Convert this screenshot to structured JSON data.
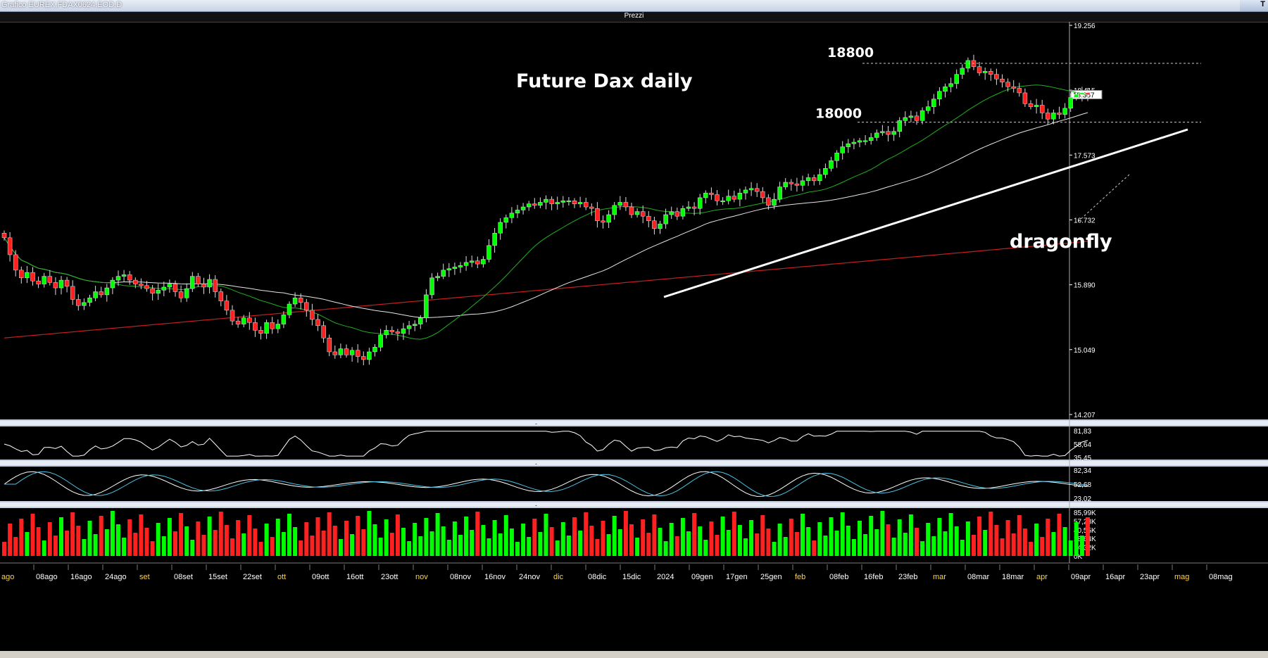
{
  "window": {
    "title": "Grafico EUREX.FDAX0624.EOD.D",
    "title_right": "T",
    "panel_title": "Prezzi"
  },
  "colors": {
    "up": "#00ff00",
    "down": "#ff2020",
    "ma_short": "#1fb01f",
    "ma_mid": "#e6e6e6",
    "ma_long": "#c81e1e",
    "osc1": "#ffffff",
    "osc2_a": "#ffffff",
    "osc2_b": "#4fc3e8",
    "axis_bg": "#000000",
    "date_yellow": "#ffd24a",
    "date_white": "#ffffff"
  },
  "chart_data": [
    {
      "type": "candlestick",
      "title": "Future Dax daily",
      "y_axis_ticks": [
        "19.256",
        "18.415",
        "17.573",
        "16.732",
        "15.890",
        "15.049",
        "14.207"
      ],
      "ylim": [
        14207,
        19256
      ],
      "last_price": "18.357",
      "x_labels": [
        {
          "t": "ago",
          "c": "yellow"
        },
        {
          "t": "08ago",
          "c": "white"
        },
        {
          "t": "16ago",
          "c": "white"
        },
        {
          "t": "24ago",
          "c": "white"
        },
        {
          "t": "set",
          "c": "yellow"
        },
        {
          "t": "08set",
          "c": "white"
        },
        {
          "t": "15set",
          "c": "white"
        },
        {
          "t": "22set",
          "c": "white"
        },
        {
          "t": "ott",
          "c": "yellow"
        },
        {
          "t": "09ott",
          "c": "white"
        },
        {
          "t": "16ott",
          "c": "white"
        },
        {
          "t": "23ott",
          "c": "white"
        },
        {
          "t": "nov",
          "c": "yellow"
        },
        {
          "t": "08nov",
          "c": "white"
        },
        {
          "t": "16nov",
          "c": "white"
        },
        {
          "t": "24nov",
          "c": "white"
        },
        {
          "t": "dic",
          "c": "yellow"
        },
        {
          "t": "08dic",
          "c": "white"
        },
        {
          "t": "15dic",
          "c": "white"
        },
        {
          "t": "2024",
          "c": "white"
        },
        {
          "t": "09gen",
          "c": "white"
        },
        {
          "t": "17gen",
          "c": "white"
        },
        {
          "t": "25gen",
          "c": "white"
        },
        {
          "t": "feb",
          "c": "yellow"
        },
        {
          "t": "08feb",
          "c": "white"
        },
        {
          "t": "16feb",
          "c": "white"
        },
        {
          "t": "23feb",
          "c": "white"
        },
        {
          "t": "mar",
          "c": "yellow"
        },
        {
          "t": "08mar",
          "c": "white"
        },
        {
          "t": "18mar",
          "c": "white"
        },
        {
          "t": "apr",
          "c": "yellow"
        },
        {
          "t": "09apr",
          "c": "white"
        },
        {
          "t": "16apr",
          "c": "white"
        },
        {
          "t": "23apr",
          "c": "white"
        },
        {
          "t": "mag",
          "c": "yellow"
        },
        {
          "t": "08mag",
          "c": "white"
        }
      ],
      "closes": [
        16500,
        16280,
        16080,
        15980,
        16050,
        15940,
        15900,
        16000,
        15920,
        15850,
        15950,
        15870,
        15700,
        15620,
        15660,
        15720,
        15800,
        15760,
        15850,
        15950,
        16000,
        16020,
        15950,
        15900,
        15880,
        15840,
        15780,
        15820,
        15860,
        15900,
        15800,
        15720,
        15840,
        16000,
        15900,
        15860,
        15960,
        15800,
        15680,
        15560,
        15420,
        15380,
        15460,
        15400,
        15300,
        15260,
        15400,
        15320,
        15380,
        15500,
        15640,
        15720,
        15660,
        15560,
        15440,
        15360,
        15200,
        15020,
        14980,
        15060,
        14980,
        15040,
        14960,
        14920,
        15020,
        15080,
        15240,
        15300,
        15280,
        15260,
        15320,
        15360,
        15380,
        15460,
        15760,
        15980,
        16000,
        16080,
        16100,
        16120,
        16140,
        16180,
        16200,
        16160,
        16220,
        16400,
        16560,
        16700,
        16760,
        16820,
        16860,
        16900,
        16940,
        16920,
        16960,
        17000,
        16940,
        16960,
        16980,
        16980,
        16940,
        16960,
        16900,
        16880,
        16720,
        16700,
        16800,
        16920,
        16960,
        16900,
        16800,
        16840,
        16780,
        16720,
        16620,
        16680,
        16800,
        16840,
        16780,
        16880,
        16900,
        16880,
        17020,
        17080,
        17060,
        16980,
        16980,
        17040,
        17000,
        17080,
        17120,
        17140,
        17100,
        17020,
        16920,
        17000,
        17160,
        17220,
        17200,
        17180,
        17240,
        17280,
        17240,
        17320,
        17400,
        17500,
        17600,
        17680,
        17720,
        17740,
        17760,
        17760,
        17800,
        17860,
        17880,
        17840,
        17880,
        18020,
        18060,
        18080,
        18020,
        18150,
        18200,
        18300,
        18400,
        18460,
        18500,
        18620,
        18700,
        18800,
        18720,
        18640,
        18660,
        18620,
        18560,
        18520,
        18460,
        18440,
        18380,
        18240,
        18200,
        18220,
        18120,
        18040,
        18120,
        18100,
        18180,
        18320,
        18360,
        18380,
        18357
      ],
      "volume_axis": [
        "85,99K",
        "57,28K",
        "40,55K",
        "28,64K",
        "14,32K",
        "0K"
      ],
      "annotations": {
        "level_high": "18800",
        "level_low": "18000",
        "pattern": "dragonfly"
      }
    },
    {
      "type": "line",
      "panel": "oscillator-1",
      "y_axis_ticks": [
        "81,83",
        "58,64",
        "35,45"
      ]
    },
    {
      "type": "line",
      "panel": "oscillator-2",
      "y_axis_ticks": [
        "82,34",
        "52,68",
        "23,02"
      ]
    }
  ]
}
